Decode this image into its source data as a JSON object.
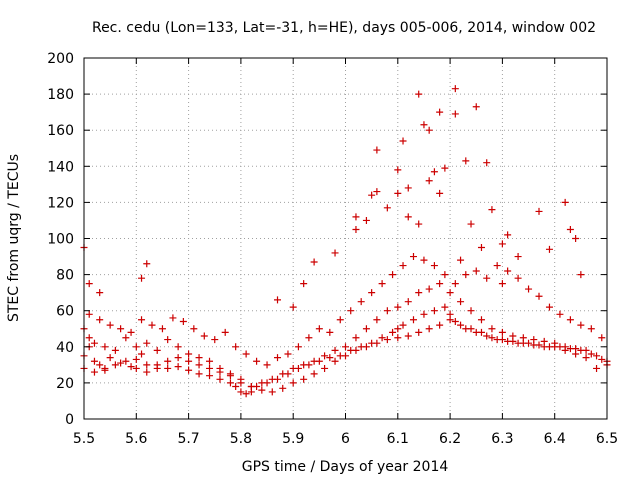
{
  "chart_data": {
    "type": "scatter",
    "title": "Rec. cedu (Lon=133, Lat=-31, h=HE), days 005-006, 2014, window 002",
    "xlabel": "GPS time / Days of year 2014",
    "ylabel": "STEC from uqrg / TECUs",
    "xlim": [
      5.5,
      6.5
    ],
    "ylim": [
      0,
      200
    ],
    "x_ticks": [
      5.5,
      5.6,
      5.7,
      5.8,
      5.9,
      6.0,
      6.1,
      6.2,
      6.3,
      6.4,
      6.5
    ],
    "x_tick_labels": [
      "5.5",
      "5.6",
      "5.7",
      "5.8",
      "5.9",
      "6",
      "6.1",
      "6.2",
      "6.3",
      "6.4",
      "6.5"
    ],
    "y_ticks": [
      0,
      20,
      40,
      60,
      80,
      100,
      120,
      140,
      160,
      180,
      200
    ],
    "y_tick_labels": [
      "0",
      "20",
      "40",
      "60",
      "80",
      "100",
      "120",
      "140",
      "160",
      "180",
      "200"
    ],
    "grid": true,
    "marker": "plus",
    "colors": {
      "points": "#cc0000",
      "grid": "#a0a0a0",
      "axes": "#000000"
    },
    "x": [
      5.5,
      5.51,
      5.52,
      5.53,
      5.54,
      5.55,
      5.57,
      5.59,
      5.6,
      5.61,
      5.62,
      5.64,
      5.66,
      5.68,
      5.7,
      5.72,
      5.74,
      5.76,
      5.78,
      5.79,
      5.8,
      5.81,
      5.82,
      5.83,
      5.85,
      5.87,
      5.89,
      5.91,
      5.93,
      5.95,
      5.97,
      5.99,
      6.01,
      6.03,
      6.05,
      6.07,
      6.09,
      6.1,
      6.11,
      6.13,
      6.15,
      6.17,
      6.19,
      6.2,
      6.21,
      6.23,
      6.25,
      6.27,
      6.29,
      6.31,
      6.33,
      6.35,
      6.37,
      6.39,
      6.41,
      6.43,
      6.45,
      6.47,
      6.49,
      6.5,
      5.5,
      5.51,
      5.52,
      5.54,
      5.56,
      5.58,
      5.6,
      5.62,
      5.64,
      5.66,
      5.68,
      5.7,
      5.72,
      5.74,
      5.76,
      5.78,
      5.8,
      5.82,
      5.84,
      5.86,
      5.88,
      5.9,
      5.92,
      5.94,
      5.96,
      5.98,
      6.0,
      6.02,
      6.04,
      6.06,
      6.08,
      6.1,
      6.12,
      6.14,
      6.16,
      6.18,
      6.2,
      6.22,
      6.24,
      6.26,
      6.28,
      6.3,
      6.32,
      6.34,
      6.36,
      6.38,
      6.4,
      6.42,
      6.44,
      6.46,
      6.48,
      6.5,
      5.5,
      5.52,
      5.54,
      5.56,
      5.58,
      5.6,
      5.62,
      5.64,
      5.66,
      5.68,
      5.7,
      5.72,
      5.74,
      5.76,
      5.78,
      5.8,
      5.82,
      5.84,
      5.86,
      5.88,
      5.9,
      5.92,
      5.94,
      5.96,
      5.98,
      6.0,
      6.02,
      6.04,
      6.06,
      6.08,
      6.1,
      6.12,
      6.14,
      6.16,
      6.18,
      6.2,
      6.22,
      6.24,
      6.26,
      6.28,
      6.3,
      6.32,
      6.34,
      6.36,
      6.38,
      6.4,
      6.42,
      6.44,
      6.46,
      6.48,
      5.51,
      5.53,
      5.55,
      5.57,
      5.59,
      5.61,
      5.63,
      5.65,
      5.67,
      5.69,
      5.71,
      5.73,
      5.75,
      5.77,
      5.79,
      5.81,
      5.83,
      5.85,
      5.87,
      5.89,
      5.91,
      5.93,
      5.95,
      5.97,
      5.99,
      6.01,
      6.03,
      6.05,
      6.07,
      6.09,
      6.11,
      6.13,
      6.15,
      6.17,
      6.19,
      6.21,
      6.23,
      6.25,
      6.27,
      6.29,
      6.31,
      6.33,
      6.35,
      6.37,
      6.39,
      6.41,
      6.43,
      6.45,
      6.47,
      6.49,
      5.5,
      5.51,
      5.53,
      5.61,
      5.62,
      5.87,
      5.9,
      5.92,
      5.94,
      5.98,
      6.02,
      6.04,
      6.05,
      6.06,
      6.08,
      6.1,
      6.11,
      6.12,
      6.14,
      6.15,
      6.16,
      6.17,
      6.18,
      6.19,
      6.21,
      6.21,
      6.23,
      6.24,
      6.25,
      6.27,
      6.28,
      6.3,
      6.31,
      6.33,
      6.37,
      6.39,
      6.42,
      6.43,
      6.44,
      6.45,
      6.3,
      6.26,
      6.22,
      6.18,
      6.14,
      6.1,
      6.06,
      6.02,
      6.16,
      6.12
    ],
    "y": [
      35,
      40,
      32,
      30,
      28,
      34,
      31,
      29,
      33,
      36,
      30,
      28,
      32,
      29,
      27,
      25,
      24,
      22,
      20,
      18,
      15,
      14,
      15,
      18,
      20,
      22,
      25,
      28,
      30,
      32,
      34,
      35,
      38,
      40,
      42,
      45,
      48,
      50,
      52,
      55,
      58,
      60,
      62,
      58,
      54,
      50,
      48,
      46,
      44,
      43,
      42,
      42,
      41,
      40,
      40,
      39,
      38,
      36,
      33,
      30,
      50,
      45,
      42,
      40,
      38,
      45,
      40,
      42,
      38,
      44,
      40,
      36,
      34,
      32,
      28,
      25,
      22,
      18,
      20,
      22,
      25,
      28,
      30,
      32,
      35,
      38,
      40,
      45,
      50,
      55,
      60,
      62,
      65,
      70,
      72,
      75,
      70,
      65,
      60,
      55,
      50,
      48,
      46,
      45,
      44,
      43,
      42,
      40,
      39,
      38,
      35,
      32,
      28,
      26,
      27,
      30,
      32,
      28,
      26,
      30,
      28,
      34,
      32,
      30,
      28,
      26,
      24,
      20,
      18,
      16,
      15,
      17,
      20,
      22,
      25,
      28,
      32,
      35,
      38,
      40,
      42,
      44,
      45,
      46,
      48,
      50,
      52,
      55,
      52,
      50,
      48,
      45,
      44,
      43,
      42,
      41,
      40,
      40,
      38,
      36,
      34,
      28,
      58,
      55,
      52,
      50,
      48,
      55,
      52,
      50,
      56,
      54,
      50,
      46,
      44,
      48,
      40,
      36,
      32,
      30,
      34,
      36,
      40,
      45,
      50,
      48,
      55,
      60,
      65,
      70,
      75,
      80,
      85,
      90,
      88,
      85,
      80,
      75,
      80,
      82,
      78,
      85,
      82,
      78,
      72,
      68,
      62,
      58,
      55,
      52,
      50,
      45,
      95,
      75,
      70,
      78,
      86,
      66,
      62,
      75,
      87,
      92,
      112,
      110,
      124,
      149,
      117,
      125,
      154,
      112,
      180,
      163,
      160,
      137,
      170,
      139,
      183,
      169,
      143,
      108,
      173,
      142,
      116,
      97,
      102,
      90,
      115,
      94,
      120,
      105,
      100,
      80,
      75,
      95,
      88,
      125,
      108,
      138,
      126,
      105,
      132,
      128
    ]
  }
}
